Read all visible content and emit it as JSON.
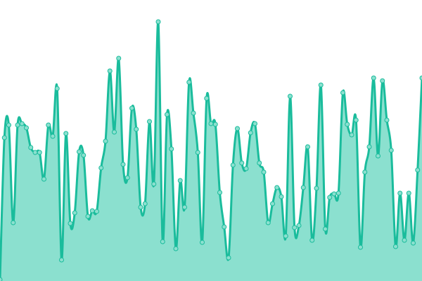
{
  "chart_data": {
    "type": "area",
    "title": "",
    "xlabel": "",
    "ylabel": "",
    "ylim": [
      0,
      400
    ],
    "grid": false,
    "smooth": true,
    "markers": true,
    "x": [
      0,
      1,
      2,
      3,
      4,
      5,
      6,
      7,
      8,
      9,
      10,
      11,
      12,
      13,
      14,
      15,
      16,
      17,
      18,
      19,
      20,
      21,
      22,
      23,
      24,
      25,
      26,
      27,
      28,
      29,
      30,
      31,
      32,
      33,
      34,
      35,
      36,
      37,
      38,
      39,
      40,
      41,
      42,
      43,
      44,
      45,
      46,
      47,
      48,
      49,
      50,
      51,
      52,
      53,
      54,
      55,
      56,
      57,
      58,
      59,
      60,
      61,
      62,
      63,
      64,
      65,
      66,
      67,
      68,
      69,
      70,
      71,
      72,
      73,
      74,
      75,
      76,
      77,
      78,
      79,
      80,
      81,
      82,
      83,
      84,
      85,
      86,
      87,
      88,
      89,
      90,
      91,
      92,
      93,
      94,
      95,
      96
    ],
    "series": [
      {
        "values": [
          2,
          204,
          222,
          83,
          222,
          224,
          218,
          190,
          183,
          183,
          145,
          222,
          206,
          274,
          30,
          210,
          82,
          97,
          184,
          179,
          92,
          100,
          99,
          161,
          199,
          299,
          212,
          317,
          166,
          147,
          246,
          216,
          105,
          110,
          227,
          138,
          369,
          56,
          237,
          188,
          46,
          143,
          105,
          283,
          239,
          183,
          55,
          260,
          224,
          223,
          126,
          77,
          33,
          165,
          217,
          168,
          160,
          211,
          224,
          168,
          155,
          83,
          110,
          133,
          120,
          64,
          263,
          76,
          79,
          133,
          191,
          58,
          132,
          279,
          74,
          119,
          124,
          125,
          268,
          223,
          208,
          229,
          48,
          155,
          191,
          289,
          178,
          285,
          229,
          186,
          49,
          125,
          58,
          125,
          54,
          158,
          289
        ]
      }
    ],
    "colors": {
      "line": "#1abc9c",
      "fill": "#8be0cf",
      "marker_fill": "#8be0cf",
      "marker_stroke": "#1abc9c"
    }
  }
}
